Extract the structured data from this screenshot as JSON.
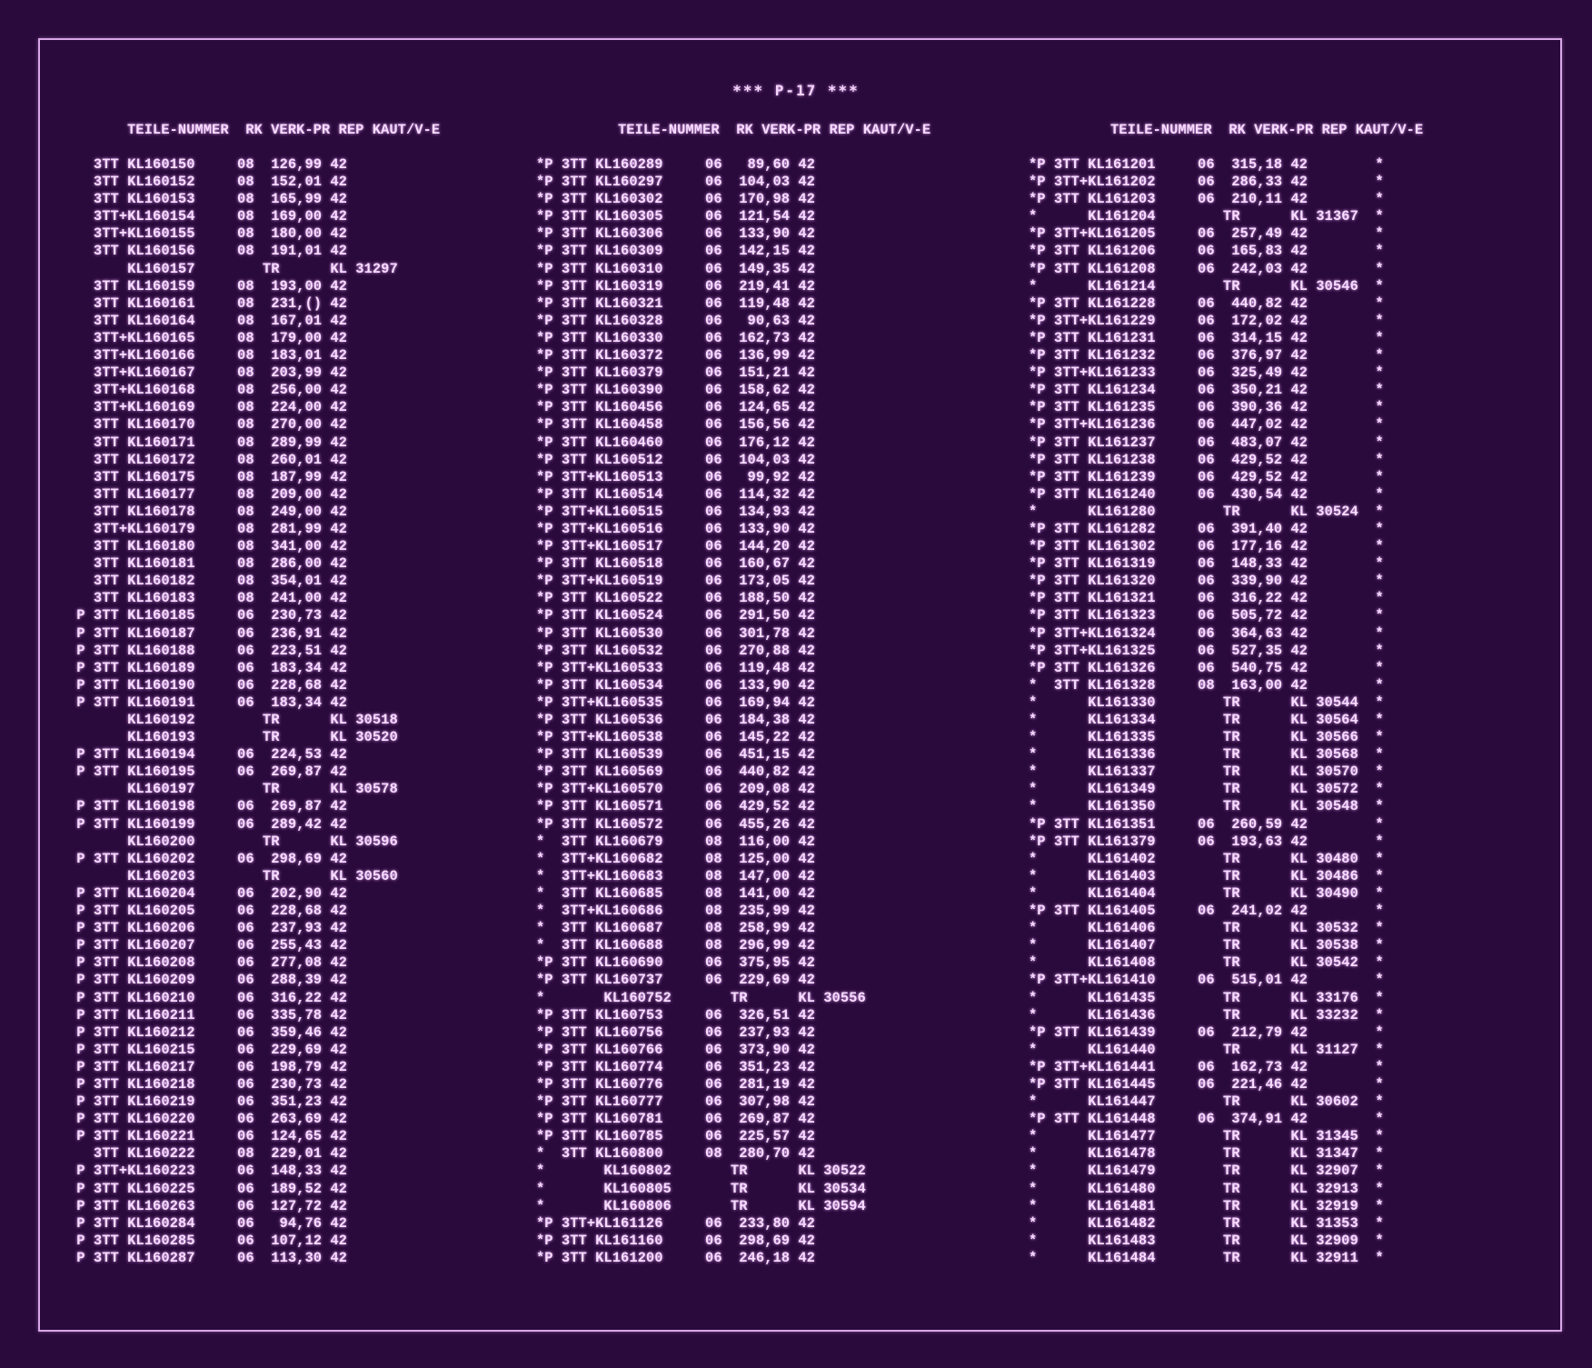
{
  "page": {
    "title": "*** P-17 ***"
  },
  "columns_header": "TEILE-NUMMER  RK VERK-PR REP KAUT/V-E",
  "blocks": [
    {
      "header": "TEILE-NUMMER  RK VERK-PR REP KAUT/V-E",
      "rows": [
        "   3TT KL160150     08  126,99 42",
        "   3TT KL160152     08  152,01 42",
        "   3TT KL160153     08  165,99 42",
        "   3TT+KL160154     08  169,00 42",
        "   3TT+KL160155     08  180,00 42",
        "   3TT KL160156     08  191,01 42",
        "       KL160157        TR      KL 31297",
        "   3TT KL160159     08  193,00 42",
        "   3TT KL160161     08  231,() 42",
        "   3TT KL160164     08  167,01 42",
        "   3TT+KL160165     08  179,00 42",
        "   3TT+KL160166     08  183,01 42",
        "   3TT+KL160167     08  203,99 42",
        "   3TT+KL160168     08  256,00 42",
        "   3TT+KL160169     08  224,00 42",
        "   3TT KL160170     08  270,00 42",
        "   3TT KL160171     08  289,99 42",
        "   3TT KL160172     08  260,01 42",
        "   3TT KL160175     08  187,99 42",
        "   3TT KL160177     08  209,00 42",
        "   3TT KL160178     08  249,00 42",
        "   3TT+KL160179     08  281,99 42",
        "   3TT KL160180     08  341,00 42",
        "   3TT KL160181     08  286,00 42",
        "   3TT KL160182     08  354,01 42",
        "   3TT KL160183     08  241,00 42",
        " P 3TT KL160185     06  230,73 42",
        " P 3TT KL160187     06  236,91 42",
        " P 3TT KL160188     06  223,51 42",
        " P 3TT KL160189     06  183,34 42",
        " P 3TT KL160190     06  228,68 42",
        " P 3TT KL160191     06  183,34 42",
        "       KL160192        TR      KL 30518",
        "       KL160193        TR      KL 30520",
        " P 3TT KL160194     06  224,53 42",
        " P 3TT KL160195     06  269,87 42",
        "       KL160197        TR      KL 30578",
        " P 3TT KL160198     06  269,87 42",
        " P 3TT KL160199     06  289,42 42",
        "       KL160200        TR      KL 30596",
        " P 3TT KL160202     06  298,69 42",
        "       KL160203        TR      KL 30560",
        " P 3TT KL160204     06  202,90 42",
        " P 3TT KL160205     06  228,68 42",
        " P 3TT KL160206     06  237,93 42",
        " P 3TT KL160207     06  255,43 42",
        " P 3TT KL160208     06  277,08 42",
        " P 3TT KL160209     06  288,39 42",
        " P 3TT KL160210     06  316,22 42",
        " P 3TT KL160211     06  335,78 42",
        " P 3TT KL160212     06  359,46 42",
        " P 3TT KL160215     06  229,69 42",
        " P 3TT KL160217     06  198,79 42",
        " P 3TT KL160218     06  230,73 42",
        " P 3TT KL160219     06  351,23 42",
        " P 3TT KL160220     06  263,69 42",
        " P 3TT KL160221     06  124,65 42",
        "   3TT KL160222     08  229,01 42",
        " P 3TT+KL160223     06  148,33 42",
        " P 3TT KL160225     06  189,52 42",
        " P 3TT KL160263     06  127,72 42",
        " P 3TT KL160284     06   94,76 42",
        " P 3TT KL160285     06  107,12 42",
        " P 3TT KL160287     06  113,30 42"
      ]
    },
    {
      "header": "TEILE-NUMMER  RK VERK-PR REP KAUT/V-E",
      "rows": [
        "*P 3TT KL160289     06   89,60 42",
        "*P 3TT KL160297     06  104,03 42",
        "*P 3TT KL160302     06  170,98 42",
        "*P 3TT KL160305     06  121,54 42",
        "*P 3TT KL160306     06  133,90 42",
        "*P 3TT KL160309     06  142,15 42",
        "*P 3TT KL160310     06  149,35 42",
        "*P 3TT KL160319     06  219,41 42",
        "*P 3TT KL160321     06  119,48 42",
        "*P 3TT KL160328     06   90,63 42",
        "*P 3TT KL160330     06  162,73 42",
        "*P 3TT KL160372     06  136,99 42",
        "*P 3TT KL160379     06  151,21 42",
        "*P 3TT KL160390     06  158,62 42",
        "*P 3TT KL160456     06  124,65 42",
        "*P 3TT KL160458     06  156,56 42",
        "*P 3TT KL160460     06  176,12 42",
        "*P 3TT KL160512     06  104,03 42",
        "*P 3TT+KL160513     06   99,92 42",
        "*P 3TT KL160514     06  114,32 42",
        "*P 3TT+KL160515     06  134,93 42",
        "*P 3TT+KL160516     06  133,90 42",
        "*P 3TT+KL160517     06  144,20 42",
        "*P 3TT KL160518     06  160,67 42",
        "*P 3TT+KL160519     06  173,05 42",
        "*P 3TT KL160522     06  188,50 42",
        "*P 3TT KL160524     06  291,50 42",
        "*P 3TT KL160530     06  301,78 42",
        "*P 3TT KL160532     06  270,88 42",
        "*P 3TT+KL160533     06  119,48 42",
        "*P 3TT KL160534     06  133,90 42",
        "*P 3TT+KL160535     06  169,94 42",
        "*P 3TT KL160536     06  184,38 42",
        "*P 3TT+KL160538     06  145,22 42",
        "*P 3TT KL160539     06  451,15 42",
        "*P 3TT KL160569     06  440,82 42",
        "*P 3TT+KL160570     06  209,08 42",
        "*P 3TT KL160571     06  429,52 42",
        "*P 3TT KL160572     06  455,26 42",
        "*  3TT KL160679     08  116,00 42",
        "*  3TT+KL160682     08  125,00 42",
        "*  3TT+KL160683     08  147,00 42",
        "*  3TT KL160685     08  141,00 42",
        "*  3TT+KL160686     08  235,99 42",
        "*  3TT KL160687     08  258,99 42",
        "*  3TT KL160688     08  296,99 42",
        "*P 3TT KL160690     06  375,95 42",
        "*P 3TT KL160737     06  229,69 42",
        "*       KL160752       TR      KL 30556",
        "*P 3TT KL160753     06  326,51 42",
        "*P 3TT KL160756     06  237,93 42",
        "*P 3TT KL160766     06  373,90 42",
        "*P 3TT KL160774     06  351,23 42",
        "*P 3TT KL160776     06  281,19 42",
        "*P 3TT KL160777     06  307,98 42",
        "*P 3TT KL160781     06  269,87 42",
        "*P 3TT KL160785     06  225,57 42",
        "*  3TT KL160800     08  280,70 42",
        "*       KL160802       TR      KL 30522",
        "*       KL160805       TR      KL 30534",
        "*       KL160806       TR      KL 30594",
        "*P 3TT+KL161126     06  233,80 42",
        "*P 3TT KL161160     06  298,69 42",
        "*P 3TT KL161200     06  246,18 42"
      ]
    },
    {
      "header": "TEILE-NUMMER  RK VERK-PR REP KAUT/V-E",
      "rows": [
        "*P 3TT KL161201     06  315,18 42        *",
        "*P 3TT+KL161202     06  286,33 42        *",
        "*P 3TT KL161203     06  210,11 42        *",
        "*      KL161204        TR      KL 31367  *",
        "*P 3TT+KL161205     06  257,49 42        *",
        "*P 3TT KL161206     06  165,83 42        *",
        "*P 3TT KL161208     06  242,03 42        *",
        "*      KL161214        TR      KL 30546  *",
        "*P 3TT KL161228     06  440,82 42        *",
        "*P 3TT+KL161229     06  172,02 42        *",
        "*P 3TT KL161231     06  314,15 42        *",
        "*P 3TT KL161232     06  376,97 42        *",
        "*P 3TT+KL161233     06  325,49 42        *",
        "*P 3TT KL161234     06  350,21 42        *",
        "*P 3TT KL161235     06  390,36 42        *",
        "*P 3TT+KL161236     06  447,02 42        *",
        "*P 3TT KL161237     06  483,07 42        *",
        "*P 3TT KL161238     06  429,52 42        *",
        "*P 3TT KL161239     06  429,52 42        *",
        "*P 3TT KL161240     06  430,54 42        *",
        "*      KL161280        TR      KL 30524  *",
        "*P 3TT KL161282     06  391,40 42        *",
        "*P 3TT KL161302     06  177,16 42        *",
        "*P 3TT KL161319     06  148,33 42        *",
        "*P 3TT KL161320     06  339,90 42        *",
        "*P 3TT KL161321     06  316,22 42        *",
        "*P 3TT KL161323     06  505,72 42        *",
        "*P 3TT+KL161324     06  364,63 42        *",
        "*P 3TT+KL161325     06  527,35 42        *",
        "*P 3TT KL161326     06  540,75 42        *",
        "*  3TT KL161328     08  163,00 42        *",
        "*      KL161330        TR      KL 30544  *",
        "*      KL161334        TR      KL 30564  *",
        "*      KL161335        TR      KL 30566  *",
        "*      KL161336        TR      KL 30568  *",
        "*      KL161337        TR      KL 30570  *",
        "*      KL161349        TR      KL 30572  *",
        "*      KL161350        TR      KL 30548  *",
        "*P 3TT KL161351     06  260,59 42        *",
        "*P 3TT KL161379     06  193,63 42        *",
        "*      KL161402        TR      KL 30480  *",
        "*      KL161403        TR      KL 30486  *",
        "*      KL161404        TR      KL 30490  *",
        "*P 3TT KL161405     06  241,02 42        *",
        "*      KL161406        TR      KL 30532  *",
        "*      KL161407        TR      KL 30538  *",
        "*      KL161408        TR      KL 30542  *",
        "*P 3TT+KL161410     06  515,01 42        *",
        "*      KL161435        TR      KL 33176  *",
        "*      KL161436        TR      KL 33232  *",
        "*P 3TT KL161439     06  212,79 42        *",
        "*      KL161440        TR      KL 31127  *",
        "*P 3TT+KL161441     06  162,73 42        *",
        "*P 3TT KL161445     06  221,46 42        *",
        "*      KL161447        TR      KL 30602  *",
        "*P 3TT KL161448     06  374,91 42        *",
        "*      KL161477        TR      KL 31345  *",
        "*      KL161478        TR      KL 31347  *",
        "*      KL161479        TR      KL 32907  *",
        "*      KL161480        TR      KL 32913  *",
        "*      KL161481        TR      KL 32919  *",
        "*      KL161482        TR      KL 31353  *",
        "*      KL161483        TR      KL 32909  *",
        "*      KL161484        TR      KL 32911  *"
      ]
    }
  ]
}
